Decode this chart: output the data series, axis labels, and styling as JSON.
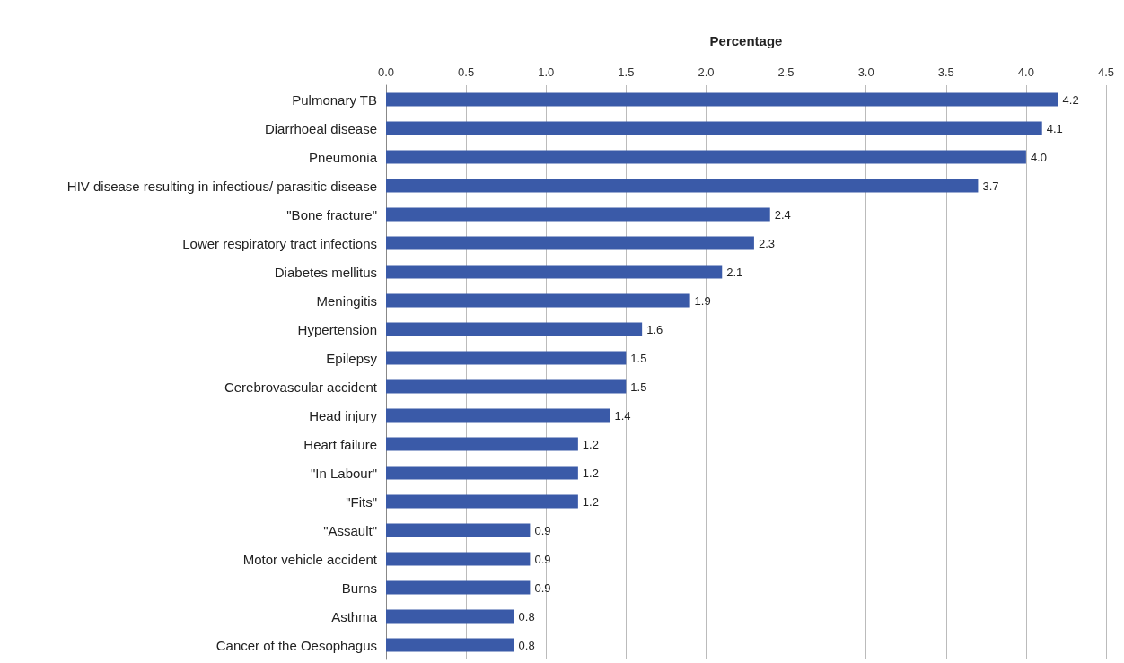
{
  "chart_data": {
    "type": "bar",
    "orientation": "horizontal",
    "xlabel": "Percentage",
    "categories": [
      "Pulmonary TB",
      "Diarrhoeal disease",
      "Pneumonia",
      "HIV disease resulting in infectious/ parasitic disease",
      "\"Bone fracture\"",
      "Lower respiratory tract infections",
      "Diabetes mellitus",
      "Meningitis",
      "Hypertension",
      "Epilepsy",
      "Cerebrovascular accident",
      "Head injury",
      "Heart failure",
      "\"In Labour\"",
      "\"Fits\"",
      "\"Assault\"",
      "Motor vehicle accident",
      "Burns",
      "Asthma",
      "Cancer of the Oesophagus"
    ],
    "values": [
      4.2,
      4.1,
      4.0,
      3.7,
      2.4,
      2.3,
      2.1,
      1.9,
      1.6,
      1.5,
      1.5,
      1.4,
      1.2,
      1.2,
      1.2,
      0.9,
      0.9,
      0.9,
      0.8,
      0.8
    ],
    "value_labels": [
      "4.2",
      "4.1",
      "4.0",
      "3.7",
      "2.4",
      "2.3",
      "2.1",
      "1.9",
      "1.6",
      "1.5",
      "1.5",
      "1.4",
      "1.2",
      "1.2",
      "1.2",
      "0.9",
      "0.9",
      "0.9",
      "0.8",
      "0.8"
    ],
    "color": "#3a5aa8",
    "xlim": [
      0,
      4.5
    ],
    "xticks": [
      {
        "value": 0,
        "label": "0.0"
      },
      0.5,
      {
        "value": 1,
        "label": "1.0"
      },
      1.5,
      {
        "value": 2,
        "label": "2.0"
      },
      2.5,
      {
        "value": 3,
        "label": "3.0"
      },
      3.5,
      {
        "value": 4,
        "label": "4.0"
      },
      4.5
    ],
    "grid": "x"
  }
}
